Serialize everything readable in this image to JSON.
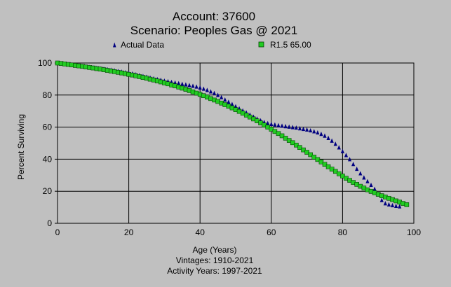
{
  "chart_data": {
    "type": "scatter",
    "title": "Account: 37600",
    "subtitle": "Scenario: Peoples Gas @ 2021",
    "xlabel": "Age (Years)",
    "ylabel": "Percent Surviving",
    "notes": [
      "Vintages: 1910-2021",
      "Activity Years: 1997-2021"
    ],
    "xlim": [
      0,
      100
    ],
    "ylim": [
      0,
      100
    ],
    "xticks": [
      0,
      20,
      40,
      60,
      80,
      100
    ],
    "yticks": [
      0,
      20,
      40,
      60,
      80,
      100
    ],
    "grid": true,
    "legend_position": "top",
    "series": [
      {
        "name": "Actual Data",
        "marker": "triangle",
        "color": "#000080",
        "x": [
          0,
          1,
          2,
          3,
          4,
          5,
          6,
          7,
          8,
          9,
          10,
          11,
          12,
          13,
          14,
          15,
          16,
          17,
          18,
          19,
          20,
          21,
          22,
          23,
          24,
          25,
          26,
          27,
          28,
          29,
          30,
          31,
          32,
          33,
          34,
          35,
          36,
          37,
          38,
          39,
          40,
          41,
          42,
          43,
          44,
          45,
          46,
          47,
          48,
          49,
          50,
          51,
          52,
          53,
          54,
          55,
          56,
          57,
          58,
          59,
          60,
          61,
          62,
          63,
          64,
          65,
          66,
          67,
          68,
          69,
          70,
          71,
          72,
          73,
          74,
          75,
          76,
          77,
          78,
          79,
          80,
          81,
          82,
          83,
          84,
          85,
          86,
          87,
          88,
          89,
          90,
          91,
          92,
          93,
          94,
          95,
          96
        ],
        "y": [
          100,
          99.7,
          99.5,
          99.2,
          99.0,
          98.7,
          98.5,
          98.2,
          97.9,
          97.6,
          97.3,
          97.0,
          96.7,
          96.4,
          96.1,
          95.8,
          95.4,
          95.0,
          94.6,
          94.2,
          93.8,
          93.4,
          92.9,
          92.4,
          91.9,
          91.4,
          90.9,
          90.4,
          89.9,
          89.5,
          89.0,
          88.6,
          88.2,
          87.8,
          87.4,
          87.0,
          86.6,
          86.2,
          85.8,
          85.3,
          84.7,
          84.0,
          83.2,
          82.3,
          81.3,
          80.1,
          78.7,
          77.2,
          75.8,
          74.4,
          73.0,
          71.7,
          70.4,
          69.1,
          67.8,
          66.5,
          65.3,
          64.2,
          63.2,
          62.5,
          62.0,
          61.6,
          61.2,
          60.9,
          60.6,
          60.3,
          60.0,
          59.7,
          59.3,
          58.9,
          58.5,
          58.0,
          57.4,
          56.7,
          55.8,
          54.7,
          53.3,
          51.6,
          49.6,
          47.4,
          45.0,
          42.6,
          40.0,
          37.0,
          34.0,
          31.2,
          28.6,
          26.3,
          24.0,
          21.5,
          18.0,
          14.5,
          12.5,
          11.8,
          11.3,
          10.9,
          10.6
        ]
      },
      {
        "name": "R1.5 65.00",
        "marker": "square",
        "color": "#22cc22",
        "x": [
          0,
          1,
          2,
          3,
          4,
          5,
          6,
          7,
          8,
          9,
          10,
          11,
          12,
          13,
          14,
          15,
          16,
          17,
          18,
          19,
          20,
          21,
          22,
          23,
          24,
          25,
          26,
          27,
          28,
          29,
          30,
          31,
          32,
          33,
          34,
          35,
          36,
          37,
          38,
          39,
          40,
          41,
          42,
          43,
          44,
          45,
          46,
          47,
          48,
          49,
          50,
          51,
          52,
          53,
          54,
          55,
          56,
          57,
          58,
          59,
          60,
          61,
          62,
          63,
          64,
          65,
          66,
          67,
          68,
          69,
          70,
          71,
          72,
          73,
          74,
          75,
          76,
          77,
          78,
          79,
          80,
          81,
          82,
          83,
          84,
          85,
          86,
          87,
          88,
          89,
          90,
          91,
          92,
          93,
          94,
          95,
          96,
          97,
          98
        ],
        "y": [
          100,
          99.7,
          99.4,
          99.1,
          98.8,
          98.5,
          98.2,
          97.9,
          97.5,
          97.2,
          96.9,
          96.5,
          96.2,
          95.8,
          95.4,
          95.0,
          94.6,
          94.2,
          93.8,
          93.4,
          92.9,
          92.5,
          92.0,
          91.5,
          91.0,
          90.5,
          89.9,
          89.4,
          88.8,
          88.2,
          87.6,
          87.0,
          86.3,
          85.7,
          85.0,
          84.3,
          83.6,
          82.8,
          82.0,
          81.2,
          80.4,
          79.6,
          78.7,
          77.8,
          76.9,
          76.0,
          75.0,
          74.0,
          73.0,
          72.0,
          70.9,
          69.8,
          68.7,
          67.5,
          66.3,
          65.1,
          63.9,
          62.6,
          61.3,
          60.0,
          58.7,
          57.3,
          56.0,
          54.6,
          53.1,
          51.7,
          50.3,
          48.8,
          47.3,
          45.8,
          44.3,
          42.8,
          41.3,
          39.8,
          38.3,
          36.8,
          35.3,
          33.8,
          32.4,
          30.9,
          29.5,
          28.1,
          26.8,
          25.5,
          24.3,
          23.1,
          22.0,
          20.9,
          19.9,
          19.0,
          18.1,
          17.2,
          16.4,
          15.6,
          14.8,
          14.0,
          13.2,
          12.4,
          11.6
        ]
      }
    ]
  }
}
